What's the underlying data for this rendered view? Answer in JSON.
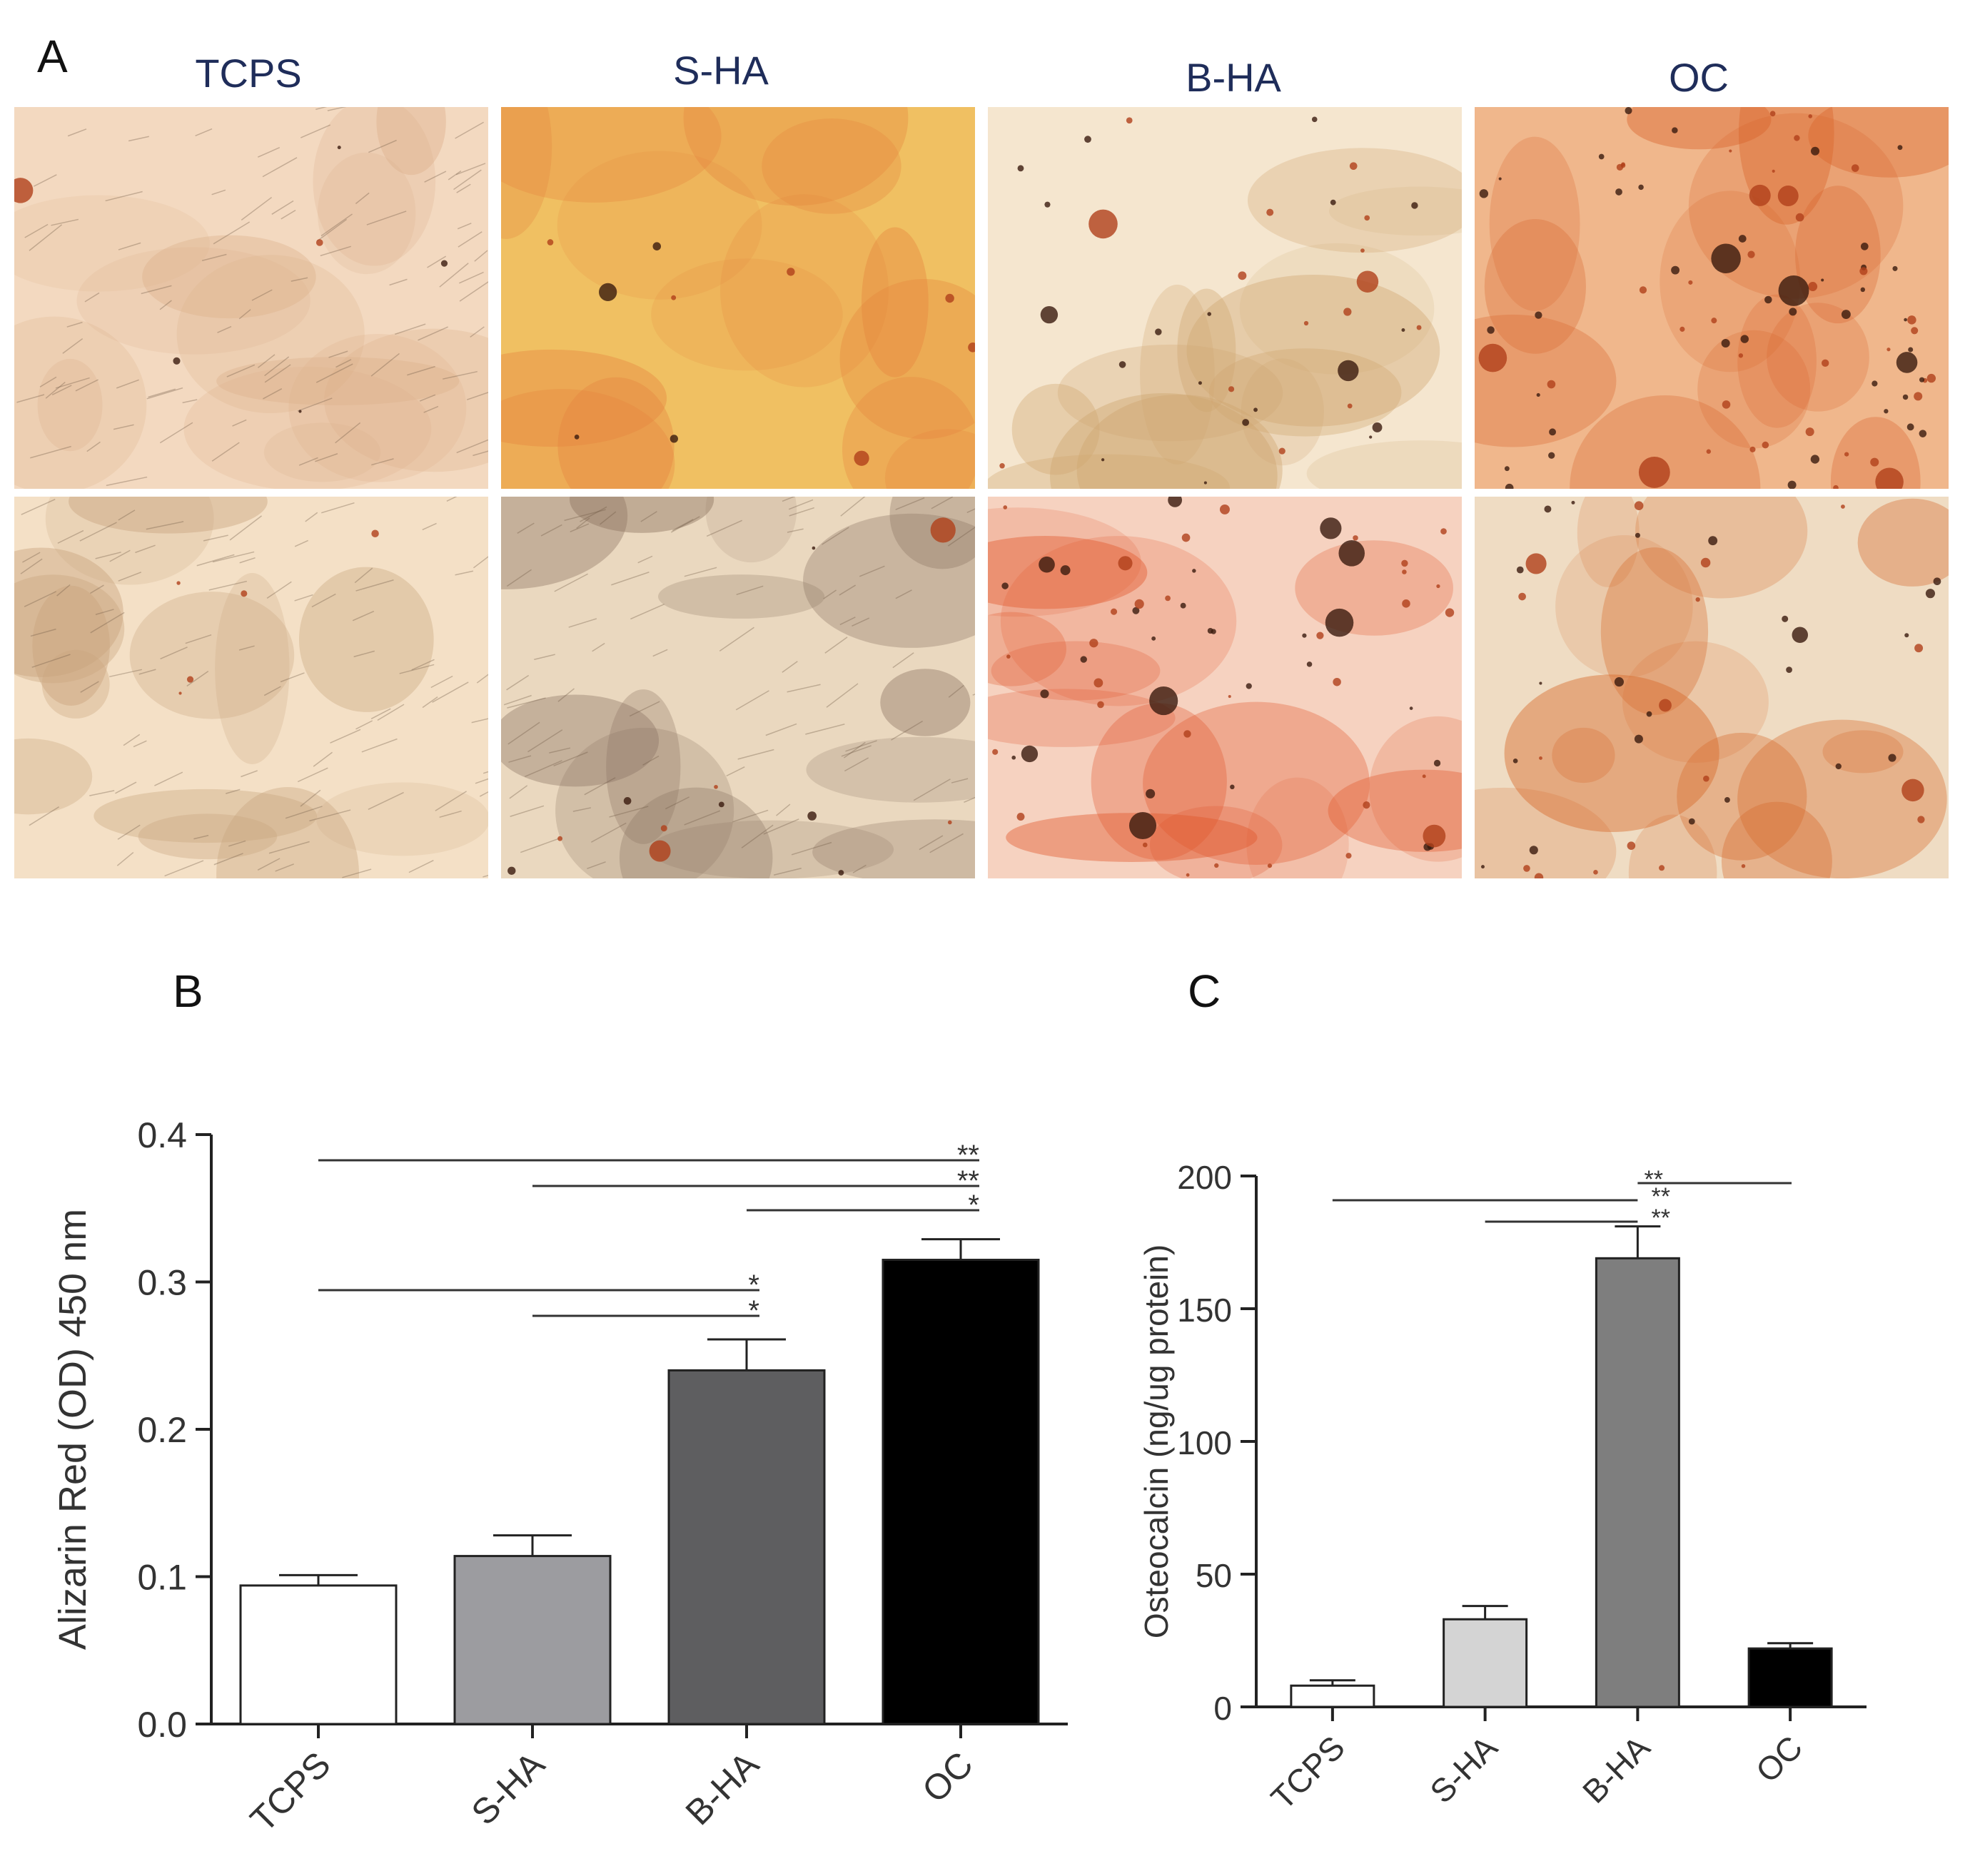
{
  "panels": {
    "a_letter": "A",
    "b_letter": "B",
    "c_letter": "C"
  },
  "panel_a": {
    "columns": [
      "TCPS",
      "S-HA",
      "B-HA",
      "OC"
    ],
    "tiles": [
      {
        "group": "TCPS",
        "row": 1,
        "base": "#f3d9c0",
        "stain": "#dcb08b",
        "spots": 6,
        "fibers": true,
        "seed": 11
      },
      {
        "group": "S-HA",
        "row": 1,
        "base": "#f0c062",
        "stain": "#e5843e",
        "spots": 10,
        "fibers": false,
        "seed": 23
      },
      {
        "group": "B-HA",
        "row": 1,
        "base": "#f5e6cf",
        "stain": "#cfa670",
        "spots": 34,
        "fibers": false,
        "seed": 37
      },
      {
        "group": "OC",
        "row": 1,
        "base": "#f0b78c",
        "stain": "#d8622a",
        "spots": 80,
        "fibers": false,
        "seed": 41
      },
      {
        "group": "TCPS",
        "row": 2,
        "base": "#f4e0c6",
        "stain": "#c9a57f",
        "spots": 5,
        "fibers": true,
        "seed": 53
      },
      {
        "group": "S-HA",
        "row": 2,
        "base": "#ead8bf",
        "stain": "#8a7260",
        "spots": 12,
        "fibers": true,
        "seed": 67
      },
      {
        "group": "B-HA",
        "row": 2,
        "base": "#f6d2c0",
        "stain": "#e1552a",
        "spots": 60,
        "fibers": false,
        "seed": 79
      },
      {
        "group": "OC",
        "row": 2,
        "base": "#efdcc3",
        "stain": "#d66a2c",
        "spots": 40,
        "fibers": false,
        "seed": 83
      }
    ]
  },
  "chart_data": [
    {
      "type": "bar",
      "panel": "B",
      "ylabel": "Alizarin Red (OD) 450 nm",
      "categories": [
        "TCPS",
        "S-HA",
        "B-HA",
        "OC"
      ],
      "values": [
        0.094,
        0.114,
        0.24,
        0.315
      ],
      "errors": [
        0.007,
        0.014,
        0.021,
        0.014
      ],
      "colors": [
        "#ffffff",
        "#9c9ca0",
        "#5e5e60",
        "#000000"
      ],
      "ylim": [
        0,
        0.4
      ],
      "yticks": [
        "0.0",
        "0.1",
        "0.2",
        "0.3",
        "0.4"
      ],
      "significance": [
        {
          "from": "TCPS",
          "to": "OC",
          "label": "**"
        },
        {
          "from": "S-HA",
          "to": "OC",
          "label": "**"
        },
        {
          "from": "B-HA",
          "to": "OC",
          "label": "*"
        },
        {
          "from": "TCPS",
          "to": "B-HA",
          "label": "*"
        },
        {
          "from": "S-HA",
          "to": "B-HA",
          "label": "*"
        }
      ]
    },
    {
      "type": "bar",
      "panel": "C",
      "ylabel": "Osteocalcin (ng/ug protein)",
      "categories": [
        "TCPS",
        "S-HA",
        "B-HA",
        "OC"
      ],
      "values": [
        8,
        33,
        169,
        22
      ],
      "errors": [
        2,
        5,
        12,
        2
      ],
      "colors": [
        "#ffffff",
        "#d4d4d4",
        "#7e7e7e",
        "#000000"
      ],
      "ylim": [
        0,
        200
      ],
      "yticks": [
        "0",
        "50",
        "100",
        "150",
        "200"
      ],
      "significance": [
        {
          "from": "TCPS",
          "to": "B-HA",
          "label": "**"
        },
        {
          "from": "S-HA",
          "to": "B-HA",
          "label": "**"
        },
        {
          "from": "B-HA",
          "to": "OC",
          "label": "**"
        }
      ]
    }
  ]
}
